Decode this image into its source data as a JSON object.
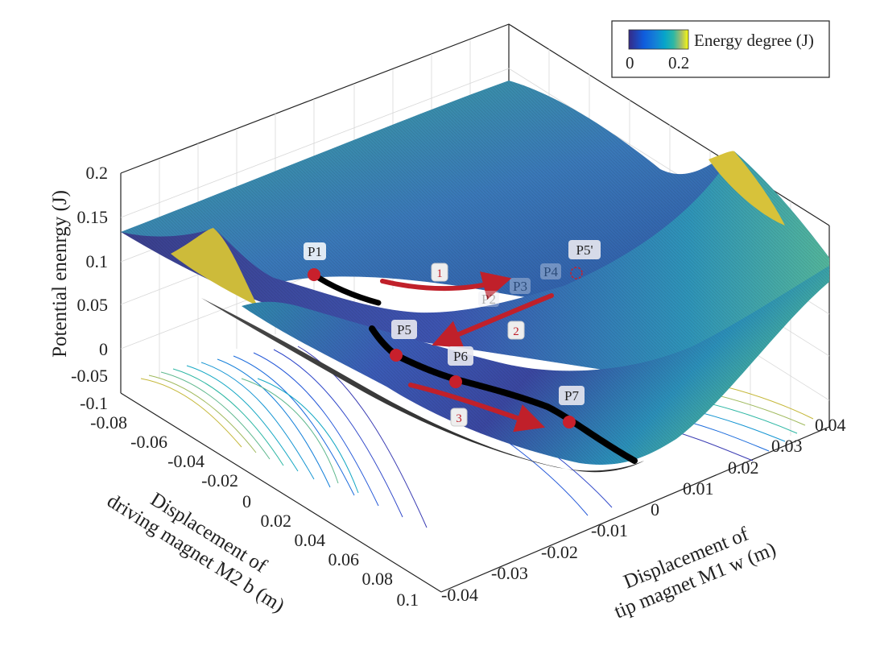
{
  "chart_data": {
    "type": "surface",
    "zlabel": "Potential enenrgy (J)",
    "xlabel_lines": [
      "Displacement of",
      "driving magnet M2 b (m)"
    ],
    "ylabel_lines": [
      "Displacement of",
      "tip magnet M1 w (m)"
    ],
    "z_ticks": [
      "0.2",
      "0.15",
      "0.1",
      "0.05",
      "0",
      "-0.05",
      "-0.1"
    ],
    "b_ticks": [
      "-0.08",
      "-0.06",
      "-0.04",
      "-0.02",
      "0",
      "0.02",
      "0.04",
      "0.06",
      "0.08",
      "0.1"
    ],
    "w_ticks": [
      "-0.04",
      "-0.03",
      "-0.02",
      "-0.01",
      "0",
      "0.01",
      "0.02",
      "0.03",
      "0.04"
    ],
    "b_range": [
      -0.1,
      0.1
    ],
    "w_range": [
      -0.04,
      0.04
    ],
    "z_range": [
      -0.1,
      0.2
    ],
    "colorbar": {
      "label": "Energy degree (J)",
      "tick_min": "0",
      "tick_max": "0.2",
      "range": [
        0,
        0.2
      ],
      "colormap": "parula"
    },
    "points": [
      {
        "label": "P1",
        "b": -0.03,
        "w": 0.0,
        "z": 0.065
      },
      {
        "label": "P2",
        "b": 0.006,
        "w": 0.014,
        "z": 0.035
      },
      {
        "label": "P3",
        "b": 0.016,
        "w": 0.017,
        "z": 0.04
      },
      {
        "label": "P4",
        "b": 0.026,
        "w": 0.02,
        "z": 0.046
      },
      {
        "label": "P5'",
        "b": 0.034,
        "w": 0.022,
        "z": 0.05
      },
      {
        "label": "P5",
        "b": 0.04,
        "w": -0.018,
        "z": 0.015
      },
      {
        "label": "P6",
        "b": 0.06,
        "w": -0.014,
        "z": 0.0
      },
      {
        "label": "P7",
        "b": 0.09,
        "w": -0.004,
        "z": -0.028
      }
    ],
    "transitions": [
      "1",
      "2",
      "3"
    ]
  }
}
